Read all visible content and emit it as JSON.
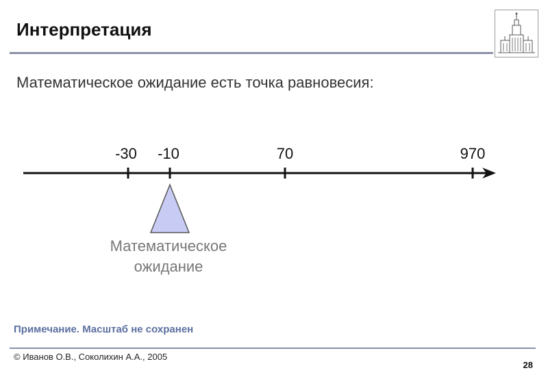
{
  "slide": {
    "title": "Интерпретация",
    "statement": "Математическое ожидание есть точка равновесия:",
    "number_line": {
      "ticks": [
        {
          "label": "-30"
        },
        {
          "label": "-10"
        },
        {
          "label": "70"
        },
        {
          "label": "970"
        }
      ]
    },
    "fulcrum": {
      "label_line1": "Математическое",
      "label_line2": "ожидание",
      "at_tick": "-10"
    },
    "note": "Примечание. Масштаб не сохранен",
    "footer": "© Иванов О.В., Соколихин А.А., 2005",
    "page_number": "28"
  },
  "colors": {
    "rule": "#8a8fa6",
    "note": "#5b6fa0",
    "fulcrum_fill": "#c8ccf4",
    "fulcrum_stroke": "#555555"
  },
  "icons": {
    "logo": "university-building-icon"
  }
}
